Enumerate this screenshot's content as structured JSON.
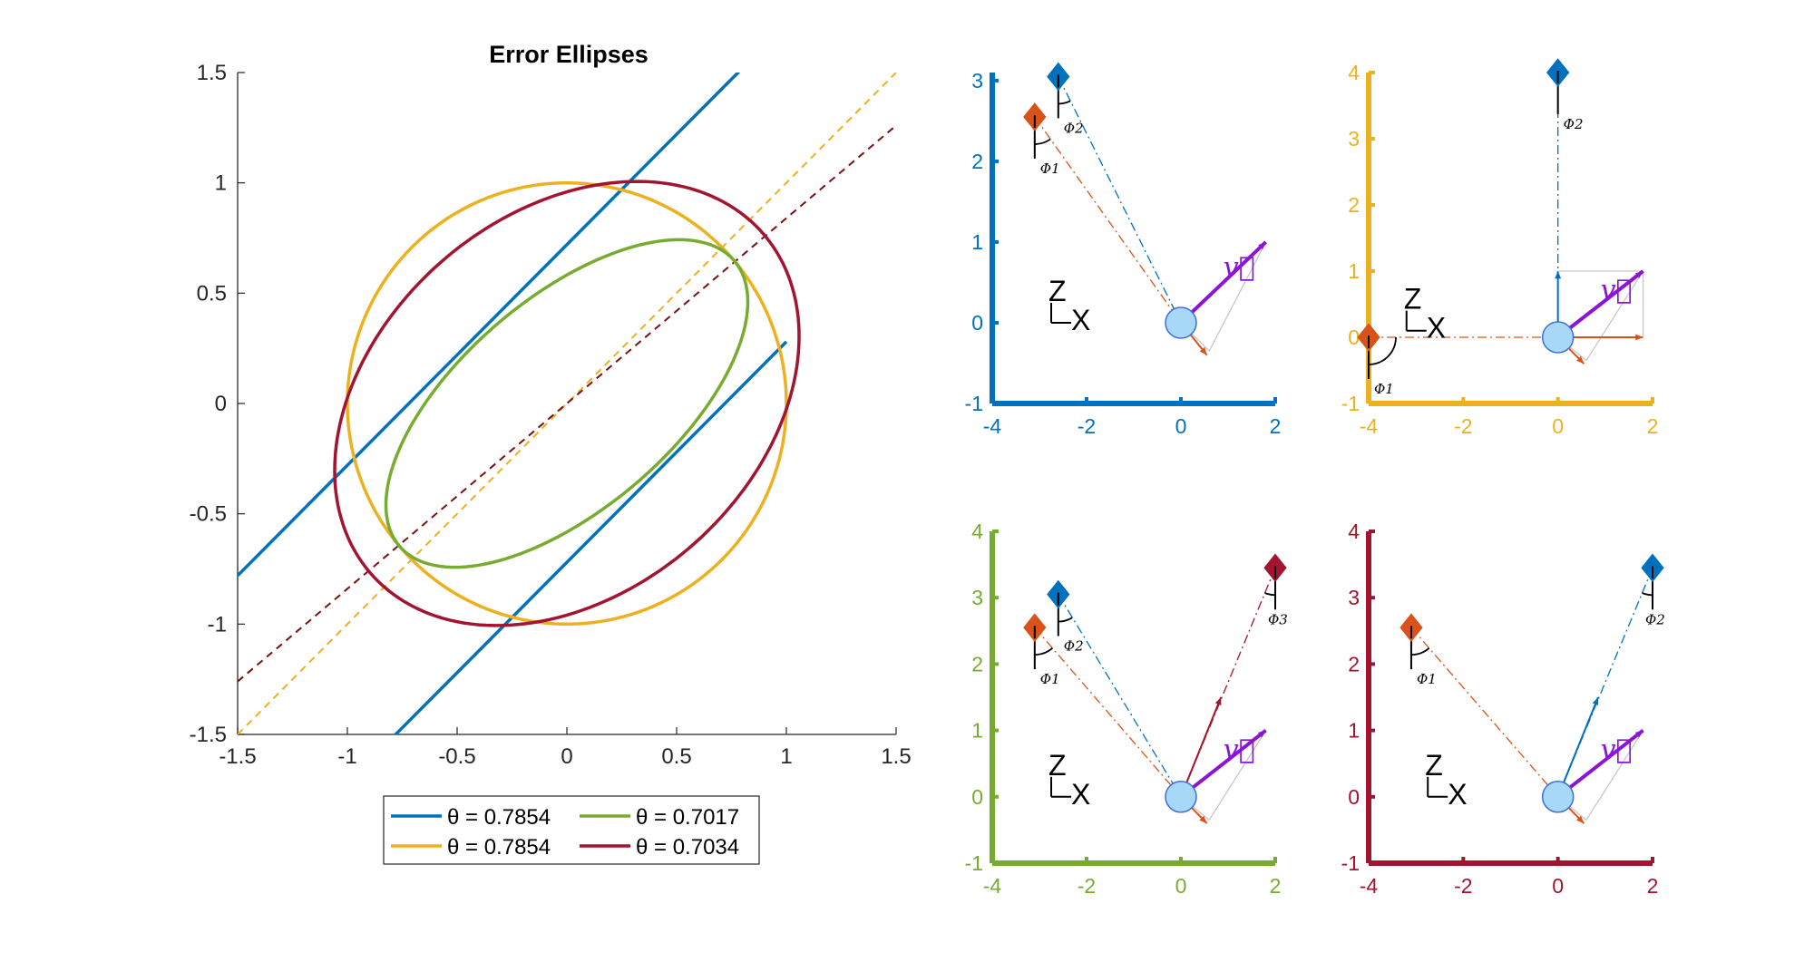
{
  "colors": {
    "blue": "#0072BD",
    "orange": "#D95319",
    "yellow": "#EDB120",
    "purple": "#7E2F8E",
    "green": "#77AC30",
    "crimson": "#A2142F",
    "violet": "#8B14D8",
    "lightblue": "#A8D8F8",
    "darkred": "#7A1010",
    "gray": "#c8c8c8"
  },
  "chart_data": [
    {
      "type": "line",
      "title": "Error Ellipses",
      "xlim": [
        -1.5,
        1.5
      ],
      "ylim": [
        -1.5,
        1.5
      ],
      "xticks": [
        -1.5,
        -1,
        -0.5,
        0,
        0.5,
        1,
        1.5
      ],
      "xtick_labels": [
        "-1.5",
        "-1",
        "-0.5",
        "0",
        "0.5",
        "1",
        "1.5"
      ],
      "yticks": [
        -1.5,
        -1,
        -0.5,
        0,
        0.5,
        1,
        1.5
      ],
      "ytick_labels": [
        "-1.5",
        "-1",
        "-0.5",
        "0",
        "0.5",
        "1",
        "1.5"
      ],
      "series": [
        {
          "name": "θ = 0.7854",
          "color": "blue",
          "kind": "lines",
          "a": 1.0,
          "b": 0.0,
          "angle_deg": 45
        },
        {
          "name": "θ = 0.7854",
          "color": "yellow",
          "kind": "ellipse",
          "a": 1.0,
          "b": 1.0,
          "angle_deg": 45,
          "major": 1.0,
          "minor": 1.0
        },
        {
          "name": "θ = 0.7017",
          "color": "green",
          "kind": "ellipse",
          "major": 1.0,
          "minor": 0.48,
          "angle_deg": 40.2
        },
        {
          "name": "θ = 0.7034",
          "color": "crimson",
          "kind": "ellipse",
          "major": 1.18,
          "minor": 0.86,
          "angle_deg": 40.3
        }
      ],
      "reference_lines": [
        {
          "color": "yellow",
          "slope": 1.0,
          "intercept": 0.0,
          "style": "dashed"
        },
        {
          "color": "darkred",
          "slope": 0.84,
          "intercept": 0.0,
          "style": "dashed"
        }
      ],
      "legend": {
        "placement": "bottom",
        "entries": [
          {
            "label": "θ = 0.7854",
            "color": "blue"
          },
          {
            "label": "θ = 0.7017",
            "color": "green"
          },
          {
            "label": "θ = 0.7854",
            "color": "yellow"
          },
          {
            "label": "θ = 0.7034",
            "color": "crimson"
          }
        ]
      }
    },
    {
      "type": "scatter",
      "axis_color": "blue",
      "xlim": [
        -4,
        2
      ],
      "ylim": [
        -1,
        3.1
      ],
      "xticks": [
        -4,
        -2,
        0,
        2
      ],
      "xtick_labels": [
        "-4",
        "-2",
        "0",
        "2"
      ],
      "yticks": [
        -1,
        0,
        1,
        2,
        3
      ],
      "ytick_labels": [
        "-1",
        "0",
        "1",
        "2",
        "3"
      ],
      "sensors": [
        {
          "color": "orange",
          "x": -3.1,
          "y": 2.55,
          "label": "Φ1"
        },
        {
          "color": "blue",
          "x": -2.6,
          "y": 3.05,
          "label": "Φ2"
        }
      ],
      "body": {
        "x": 0,
        "y": 0,
        "velocity": [
          1.8,
          1.0
        ],
        "velocity_label": "v⃗"
      },
      "frame_label": {
        "z": "Z",
        "x": "X",
        "x0": -2.75,
        "y0": 0
      }
    },
    {
      "type": "scatter",
      "axis_color": "yellow",
      "xlim": [
        -4,
        2
      ],
      "ylim": [
        -1,
        4
      ],
      "xticks": [
        -4,
        -2,
        0,
        2
      ],
      "xtick_labels": [
        "-4",
        "-2",
        "0",
        "2"
      ],
      "yticks": [
        -1,
        0,
        1,
        2,
        3,
        4
      ],
      "ytick_labels": [
        "-1",
        "0",
        "1",
        "2",
        "3",
        "4"
      ],
      "sensors": [
        {
          "color": "orange",
          "x": -4,
          "y": 0,
          "label": "Φ1"
        },
        {
          "color": "blue",
          "x": 0,
          "y": 4,
          "label": "Φ2"
        }
      ],
      "body": {
        "x": 0,
        "y": 0,
        "velocity": [
          1.8,
          1.0
        ],
        "velocity_label": "v⃗"
      },
      "frame_label": {
        "z": "Z",
        "x": "X",
        "x0": -3.2,
        "y0": 0.1
      }
    },
    {
      "type": "scatter",
      "axis_color": "green",
      "xlim": [
        -4,
        2
      ],
      "ylim": [
        -1,
        4
      ],
      "xticks": [
        -4,
        -2,
        0,
        2
      ],
      "xtick_labels": [
        "-4",
        "-2",
        "0",
        "2"
      ],
      "yticks": [
        -1,
        0,
        1,
        2,
        3,
        4
      ],
      "ytick_labels": [
        "-1",
        "0",
        "1",
        "2",
        "3",
        "4"
      ],
      "sensors": [
        {
          "color": "orange",
          "x": -3.1,
          "y": 2.55,
          "label": "Φ1"
        },
        {
          "color": "blue",
          "x": -2.6,
          "y": 3.05,
          "label": "Φ2"
        },
        {
          "color": "crimson",
          "x": 2.0,
          "y": 3.45,
          "label": "Φ3"
        }
      ],
      "body": {
        "x": 0,
        "y": 0,
        "velocity": [
          1.8,
          1.0
        ],
        "velocity_label": "v⃗"
      },
      "frame_label": {
        "z": "Z",
        "x": "X",
        "x0": -2.75,
        "y0": 0
      }
    },
    {
      "type": "scatter",
      "axis_color": "crimson",
      "xlim": [
        -4,
        2
      ],
      "ylim": [
        -1,
        4
      ],
      "xticks": [
        -4,
        -2,
        0,
        2
      ],
      "xtick_labels": [
        "-4",
        "-2",
        "0",
        "2"
      ],
      "yticks": [
        -1,
        0,
        1,
        2,
        3,
        4
      ],
      "ytick_labels": [
        "-1",
        "0",
        "1",
        "2",
        "3",
        "4"
      ],
      "sensors": [
        {
          "color": "orange",
          "x": -3.1,
          "y": 2.55,
          "label": "Φ1"
        },
        {
          "color": "blue",
          "x": 2.0,
          "y": 3.45,
          "label": "Φ2"
        }
      ],
      "body": {
        "x": 0,
        "y": 0,
        "velocity": [
          1.8,
          1.0
        ],
        "velocity_label": "v⃗"
      },
      "frame_label": {
        "z": "Z",
        "x": "X",
        "x0": -2.75,
        "y0": 0
      }
    }
  ]
}
